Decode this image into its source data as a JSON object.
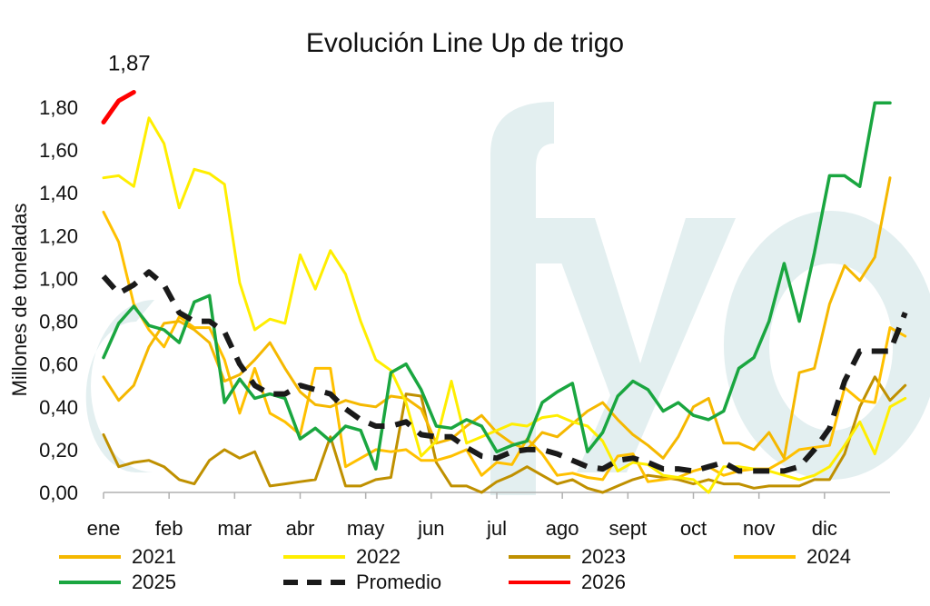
{
  "chart_data": {
    "type": "line",
    "title": "Evolución Line Up de trigo",
    "ylabel": "Millones de toneladas",
    "xlabel": "",
    "ylim": [
      0,
      1.8
    ],
    "yticks": [
      "0,00",
      "0,20",
      "0,40",
      "0,60",
      "0,80",
      "1,00",
      "1,20",
      "1,40",
      "1,60",
      "1,80"
    ],
    "months": [
      "ene",
      "feb",
      "mar",
      "abr",
      "may",
      "jun",
      "jul",
      "ago",
      "sept",
      "oct",
      "nov",
      "dic"
    ],
    "x_range": [
      1,
      53
    ],
    "grid": false,
    "legend_position": "bottom",
    "watermark": "fyo",
    "annotations": [
      {
        "text": "1,87",
        "series": "2026"
      }
    ],
    "series": [
      {
        "name": "2021",
        "color": "#f5b800",
        "dash": false,
        "width": 3,
        "values": [
          0.54,
          0.43,
          0.5,
          0.68,
          0.79,
          0.8,
          0.76,
          0.7,
          0.52,
          0.55,
          0.62,
          0.7,
          0.58,
          0.47,
          0.41,
          0.4,
          0.43,
          0.41,
          0.4,
          0.45,
          0.44,
          0.39,
          0.23,
          0.25,
          0.31,
          0.36,
          0.28,
          0.23,
          0.2,
          0.28,
          0.26,
          0.32,
          0.38,
          0.42,
          0.34,
          0.27,
          0.22,
          0.16,
          0.26,
          0.4,
          0.44,
          0.23,
          0.23,
          0.2,
          0.28,
          0.16,
          0.56,
          0.58,
          0.88,
          1.06,
          0.99,
          1.1,
          1.47
        ]
      },
      {
        "name": "2022",
        "color": "#ffee00",
        "dash": false,
        "width": 3,
        "values": [
          1.47,
          1.48,
          1.43,
          1.75,
          1.63,
          1.33,
          1.51,
          1.49,
          1.44,
          0.98,
          0.76,
          0.81,
          0.79,
          1.11,
          0.95,
          1.13,
          1.02,
          0.8,
          0.62,
          0.57,
          0.42,
          0.17,
          0.24,
          0.52,
          0.23,
          0.26,
          0.29,
          0.32,
          0.31,
          0.35,
          0.36,
          0.33,
          0.31,
          0.24,
          0.1,
          0.14,
          0.13,
          0.08,
          0.07,
          0.06,
          0.0,
          0.12,
          0.12,
          0.11,
          0.1,
          0.08,
          0.06,
          0.08,
          0.12,
          0.22,
          0.33,
          0.18,
          0.4,
          0.44
        ]
      },
      {
        "name": "2023",
        "color": "#bf9000",
        "dash": false,
        "width": 3,
        "values": [
          0.27,
          0.12,
          0.14,
          0.15,
          0.12,
          0.06,
          0.04,
          0.15,
          0.2,
          0.16,
          0.19,
          0.03,
          0.04,
          0.05,
          0.06,
          0.26,
          0.03,
          0.03,
          0.06,
          0.07,
          0.46,
          0.45,
          0.14,
          0.03,
          0.03,
          0.0,
          0.05,
          0.08,
          0.12,
          0.08,
          0.04,
          0.06,
          0.02,
          0.0,
          0.03,
          0.06,
          0.08,
          0.07,
          0.06,
          0.04,
          0.06,
          0.04,
          0.04,
          0.02,
          0.03,
          0.03,
          0.03,
          0.06,
          0.06,
          0.18,
          0.4,
          0.54,
          0.43,
          0.5
        ]
      },
      {
        "name": "2024",
        "color": "#ffc000",
        "dash": false,
        "width": 3,
        "values": [
          1.31,
          1.17,
          0.88,
          0.76,
          0.68,
          0.82,
          0.77,
          0.77,
          0.62,
          0.37,
          0.58,
          0.37,
          0.33,
          0.27,
          0.58,
          0.58,
          0.12,
          0.16,
          0.2,
          0.19,
          0.2,
          0.15,
          0.15,
          0.17,
          0.2,
          0.08,
          0.14,
          0.13,
          0.25,
          0.18,
          0.08,
          0.09,
          0.07,
          0.06,
          0.17,
          0.18,
          0.05,
          0.06,
          0.07,
          0.1,
          0.12,
          0.08,
          0.1,
          0.11,
          0.11,
          0.15,
          0.2,
          0.21,
          0.22,
          0.49,
          0.43,
          0.42,
          0.77,
          0.73
        ]
      },
      {
        "name": "2025",
        "color": "#1aa640",
        "dash": false,
        "width": 3.5,
        "values": [
          0.63,
          0.79,
          0.87,
          0.78,
          0.76,
          0.7,
          0.89,
          0.92,
          0.42,
          0.53,
          0.44,
          0.46,
          0.44,
          0.25,
          0.3,
          0.24,
          0.31,
          0.29,
          0.11,
          0.56,
          0.6,
          0.48,
          0.31,
          0.3,
          0.34,
          0.31,
          0.19,
          0.22,
          0.24,
          0.42,
          0.47,
          0.51,
          0.19,
          0.28,
          0.45,
          0.52,
          0.48,
          0.38,
          0.42,
          0.36,
          0.34,
          0.38,
          0.58,
          0.63,
          0.8,
          1.07,
          0.8,
          1.12,
          1.48,
          1.48,
          1.43,
          1.82,
          1.82
        ]
      },
      {
        "name": "Promedio",
        "color": "#1a1a1a",
        "dash": true,
        "width": 6,
        "values": [
          1.01,
          0.93,
          0.97,
          1.03,
          0.97,
          0.84,
          0.8,
          0.8,
          0.75,
          0.6,
          0.5,
          0.46,
          0.46,
          0.5,
          0.48,
          0.46,
          0.39,
          0.34,
          0.31,
          0.31,
          0.33,
          0.27,
          0.26,
          0.26,
          0.21,
          0.17,
          0.16,
          0.19,
          0.2,
          0.2,
          0.18,
          0.15,
          0.12,
          0.11,
          0.15,
          0.16,
          0.14,
          0.11,
          0.11,
          0.1,
          0.12,
          0.14,
          0.1,
          0.1,
          0.1,
          0.1,
          0.12,
          0.2,
          0.3,
          0.52,
          0.66,
          0.66,
          0.66,
          0.84
        ]
      },
      {
        "name": "2026",
        "color": "#ff0000",
        "dash": false,
        "width": 5,
        "values": [
          1.73,
          1.83,
          1.87
        ]
      }
    ]
  }
}
